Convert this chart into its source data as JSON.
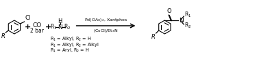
{
  "background_color": "#ffffff",
  "text_color": "#000000",
  "co_label": "CO",
  "bar_label": "2 bar",
  "reagent_above": "Pd(OAc)$_2$, Xantphos",
  "reagent_below": "(CsCl)/Et$_3$N",
  "r1_lines": [
    "R$_1$ = Alkyl, R$_2$ = H",
    "R$_1$ = Alkyl, R$_2$ = Alkyl",
    "R$_1$ = Aryl, R$_2$ = H"
  ],
  "figsize": [
    3.78,
    0.9
  ],
  "dpi": 100
}
